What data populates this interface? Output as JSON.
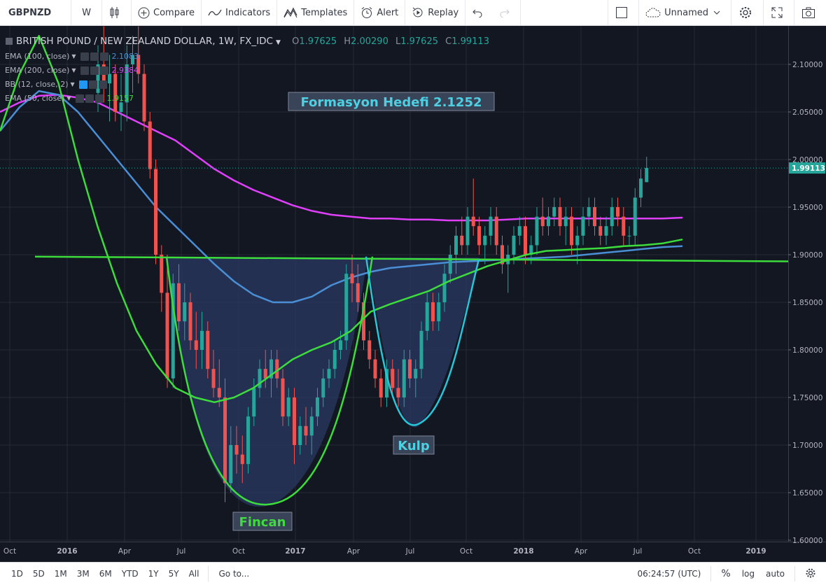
{
  "toolbar": {
    "symbol": "GBPNZD",
    "interval": "W",
    "compare": "Compare",
    "indicators": "Indicators",
    "templates": "Templates",
    "alert": "Alert",
    "replay": "Replay",
    "layout_name": "Unnamed"
  },
  "legend": {
    "title": "BRITISH POUND / NEW ZEALAND DOLLAR, 1W, FX_IDC",
    "open_label": "O",
    "open": "1.97625",
    "high_label": "H",
    "high": "2.00290",
    "low_label": "L",
    "low": "1.97625",
    "close_label": "C",
    "close": "1.99113",
    "indicators": [
      {
        "label": "EMA (100, close)",
        "value": "2.1083",
        "color": "#4a8fd6"
      },
      {
        "label": "EMA (200, close)",
        "value": "2.9384",
        "color": "#e040fb"
      },
      {
        "label": "BB (12, close, 2)",
        "value": "",
        "color": "#26c6da"
      },
      {
        "label": "EMA (50, close)",
        "value": "1.9157",
        "color": "#3ddc3d"
      }
    ]
  },
  "annotations": {
    "target": "Formasyon Hedefi 2.1252",
    "cup": "Fincan",
    "handle": "Kulp"
  },
  "price_axis": {
    "ticks": [
      "2.10000",
      "2.05000",
      "2.00000",
      "1.95000",
      "1.90000",
      "1.85000",
      "1.80000",
      "1.75000",
      "1.70000",
      "1.65000",
      "1.60000"
    ],
    "last_price": "1.99113"
  },
  "time_axis": {
    "ticks": [
      "Oct",
      "2016",
      "Apr",
      "Jul",
      "Oct",
      "2017",
      "Apr",
      "Jul",
      "Oct",
      "2018",
      "Apr",
      "Jul",
      "Oct",
      "2019"
    ]
  },
  "chart_data": {
    "type": "candlestick",
    "title": "BRITISH POUND / NEW ZEALAND DOLLAR, 1W, FX_IDC",
    "ylim": [
      1.6,
      2.12
    ],
    "neckline": 1.897,
    "last_close": 1.99113,
    "colors": {
      "up": "#26a69a",
      "down": "#ef5350",
      "ema50": "#3ddc3d",
      "ema100": "#4a8fd6",
      "ema200": "#e040fb",
      "bb": "#26c6da",
      "neckline": "#3ddc3d"
    },
    "candles": [
      [
        2.07,
        2.12,
        2.05,
        2.1
      ],
      [
        2.1,
        2.14,
        2.06,
        2.08
      ],
      [
        2.08,
        2.11,
        2.04,
        2.09
      ],
      [
        2.09,
        2.1,
        2.04,
        2.05
      ],
      [
        2.05,
        2.09,
        2.03,
        2.06
      ],
      [
        2.06,
        2.12,
        2.04,
        2.1
      ],
      [
        2.1,
        2.13,
        2.07,
        2.11
      ],
      [
        2.11,
        2.14,
        2.08,
        2.09
      ],
      [
        2.09,
        2.1,
        2.03,
        2.04
      ],
      [
        2.04,
        2.05,
        1.98,
        1.99
      ],
      [
        1.99,
        2.0,
        1.89,
        1.9
      ],
      [
        1.9,
        1.91,
        1.84,
        1.86
      ],
      [
        1.86,
        1.9,
        1.76,
        1.77
      ],
      [
        1.77,
        1.88,
        1.76,
        1.87
      ],
      [
        1.87,
        1.89,
        1.82,
        1.83
      ],
      [
        1.83,
        1.87,
        1.81,
        1.85
      ],
      [
        1.85,
        1.86,
        1.8,
        1.81
      ],
      [
        1.81,
        1.84,
        1.78,
        1.8
      ],
      [
        1.8,
        1.84,
        1.78,
        1.82
      ],
      [
        1.82,
        1.83,
        1.77,
        1.78
      ],
      [
        1.78,
        1.8,
        1.75,
        1.76
      ],
      [
        1.76,
        1.79,
        1.74,
        1.75
      ],
      [
        1.75,
        1.77,
        1.64,
        1.66
      ],
      [
        1.66,
        1.72,
        1.65,
        1.7
      ],
      [
        1.7,
        1.72,
        1.67,
        1.69
      ],
      [
        1.69,
        1.71,
        1.66,
        1.68
      ],
      [
        1.68,
        1.74,
        1.67,
        1.73
      ],
      [
        1.73,
        1.77,
        1.72,
        1.76
      ],
      [
        1.76,
        1.79,
        1.75,
        1.78
      ],
      [
        1.78,
        1.8,
        1.76,
        1.77
      ],
      [
        1.77,
        1.8,
        1.75,
        1.79
      ],
      [
        1.79,
        1.8,
        1.76,
        1.77
      ],
      [
        1.77,
        1.78,
        1.72,
        1.73
      ],
      [
        1.73,
        1.76,
        1.72,
        1.75
      ],
      [
        1.75,
        1.76,
        1.68,
        1.7
      ],
      [
        1.7,
        1.73,
        1.69,
        1.72
      ],
      [
        1.72,
        1.74,
        1.7,
        1.71
      ],
      [
        1.71,
        1.74,
        1.69,
        1.73
      ],
      [
        1.73,
        1.76,
        1.72,
        1.75
      ],
      [
        1.75,
        1.78,
        1.74,
        1.77
      ],
      [
        1.77,
        1.79,
        1.76,
        1.78
      ],
      [
        1.78,
        1.81,
        1.77,
        1.8
      ],
      [
        1.8,
        1.82,
        1.79,
        1.81
      ],
      [
        1.81,
        1.89,
        1.8,
        1.88
      ],
      [
        1.88,
        1.9,
        1.85,
        1.87
      ],
      [
        1.87,
        1.89,
        1.84,
        1.85
      ],
      [
        1.85,
        1.86,
        1.8,
        1.81
      ],
      [
        1.81,
        1.82,
        1.78,
        1.79
      ],
      [
        1.79,
        1.8,
        1.76,
        1.77
      ],
      [
        1.77,
        1.78,
        1.74,
        1.75
      ],
      [
        1.75,
        1.79,
        1.74,
        1.78
      ],
      [
        1.78,
        1.79,
        1.75,
        1.76
      ],
      [
        1.76,
        1.78,
        1.74,
        1.75
      ],
      [
        1.75,
        1.8,
        1.74,
        1.79
      ],
      [
        1.79,
        1.8,
        1.76,
        1.77
      ],
      [
        1.77,
        1.79,
        1.75,
        1.78
      ],
      [
        1.78,
        1.83,
        1.77,
        1.82
      ],
      [
        1.82,
        1.86,
        1.81,
        1.85
      ],
      [
        1.85,
        1.86,
        1.82,
        1.83
      ],
      [
        1.83,
        1.86,
        1.82,
        1.85
      ],
      [
        1.85,
        1.89,
        1.84,
        1.88
      ],
      [
        1.88,
        1.91,
        1.87,
        1.9
      ],
      [
        1.9,
        1.93,
        1.88,
        1.92
      ],
      [
        1.92,
        1.94,
        1.9,
        1.91
      ],
      [
        1.91,
        1.95,
        1.9,
        1.94
      ],
      [
        1.94,
        1.98,
        1.92,
        1.93
      ],
      [
        1.93,
        1.94,
        1.9,
        1.91
      ],
      [
        1.91,
        1.93,
        1.89,
        1.92
      ],
      [
        1.92,
        1.95,
        1.91,
        1.94
      ],
      [
        1.94,
        1.95,
        1.9,
        1.91
      ],
      [
        1.91,
        1.92,
        1.88,
        1.89
      ],
      [
        1.89,
        1.91,
        1.86,
        1.9
      ],
      [
        1.9,
        1.93,
        1.89,
        1.92
      ],
      [
        1.92,
        1.94,
        1.91,
        1.93
      ],
      [
        1.93,
        1.94,
        1.89,
        1.9
      ],
      [
        1.9,
        1.92,
        1.89,
        1.91
      ],
      [
        1.91,
        1.95,
        1.9,
        1.94
      ],
      [
        1.94,
        1.96,
        1.92,
        1.93
      ],
      [
        1.93,
        1.95,
        1.92,
        1.94
      ],
      [
        1.94,
        1.96,
        1.93,
        1.95
      ],
      [
        1.95,
        1.96,
        1.92,
        1.93
      ],
      [
        1.93,
        1.95,
        1.91,
        1.94
      ],
      [
        1.94,
        1.95,
        1.9,
        1.91
      ],
      [
        1.91,
        1.93,
        1.89,
        1.92
      ],
      [
        1.92,
        1.95,
        1.91,
        1.94
      ],
      [
        1.94,
        1.96,
        1.93,
        1.95
      ],
      [
        1.95,
        1.96,
        1.92,
        1.93
      ],
      [
        1.93,
        1.94,
        1.91,
        1.92
      ],
      [
        1.92,
        1.94,
        1.91,
        1.93
      ],
      [
        1.93,
        1.96,
        1.92,
        1.95
      ],
      [
        1.95,
        1.96,
        1.93,
        1.94
      ],
      [
        1.94,
        1.95,
        1.91,
        1.92
      ],
      [
        1.92,
        1.93,
        1.91,
        1.92
      ],
      [
        1.92,
        1.97,
        1.91,
        1.96
      ],
      [
        1.96,
        1.99,
        1.95,
        1.98
      ],
      [
        1.97625,
        2.0029,
        1.97625,
        1.99113
      ]
    ]
  },
  "bottom": {
    "ranges": [
      "1D",
      "5D",
      "1M",
      "3M",
      "6M",
      "YTD",
      "1Y",
      "5Y",
      "All"
    ],
    "goto": "Go to...",
    "time": "06:24:57 (UTC)",
    "percent": "%",
    "log": "log",
    "auto": "auto"
  }
}
